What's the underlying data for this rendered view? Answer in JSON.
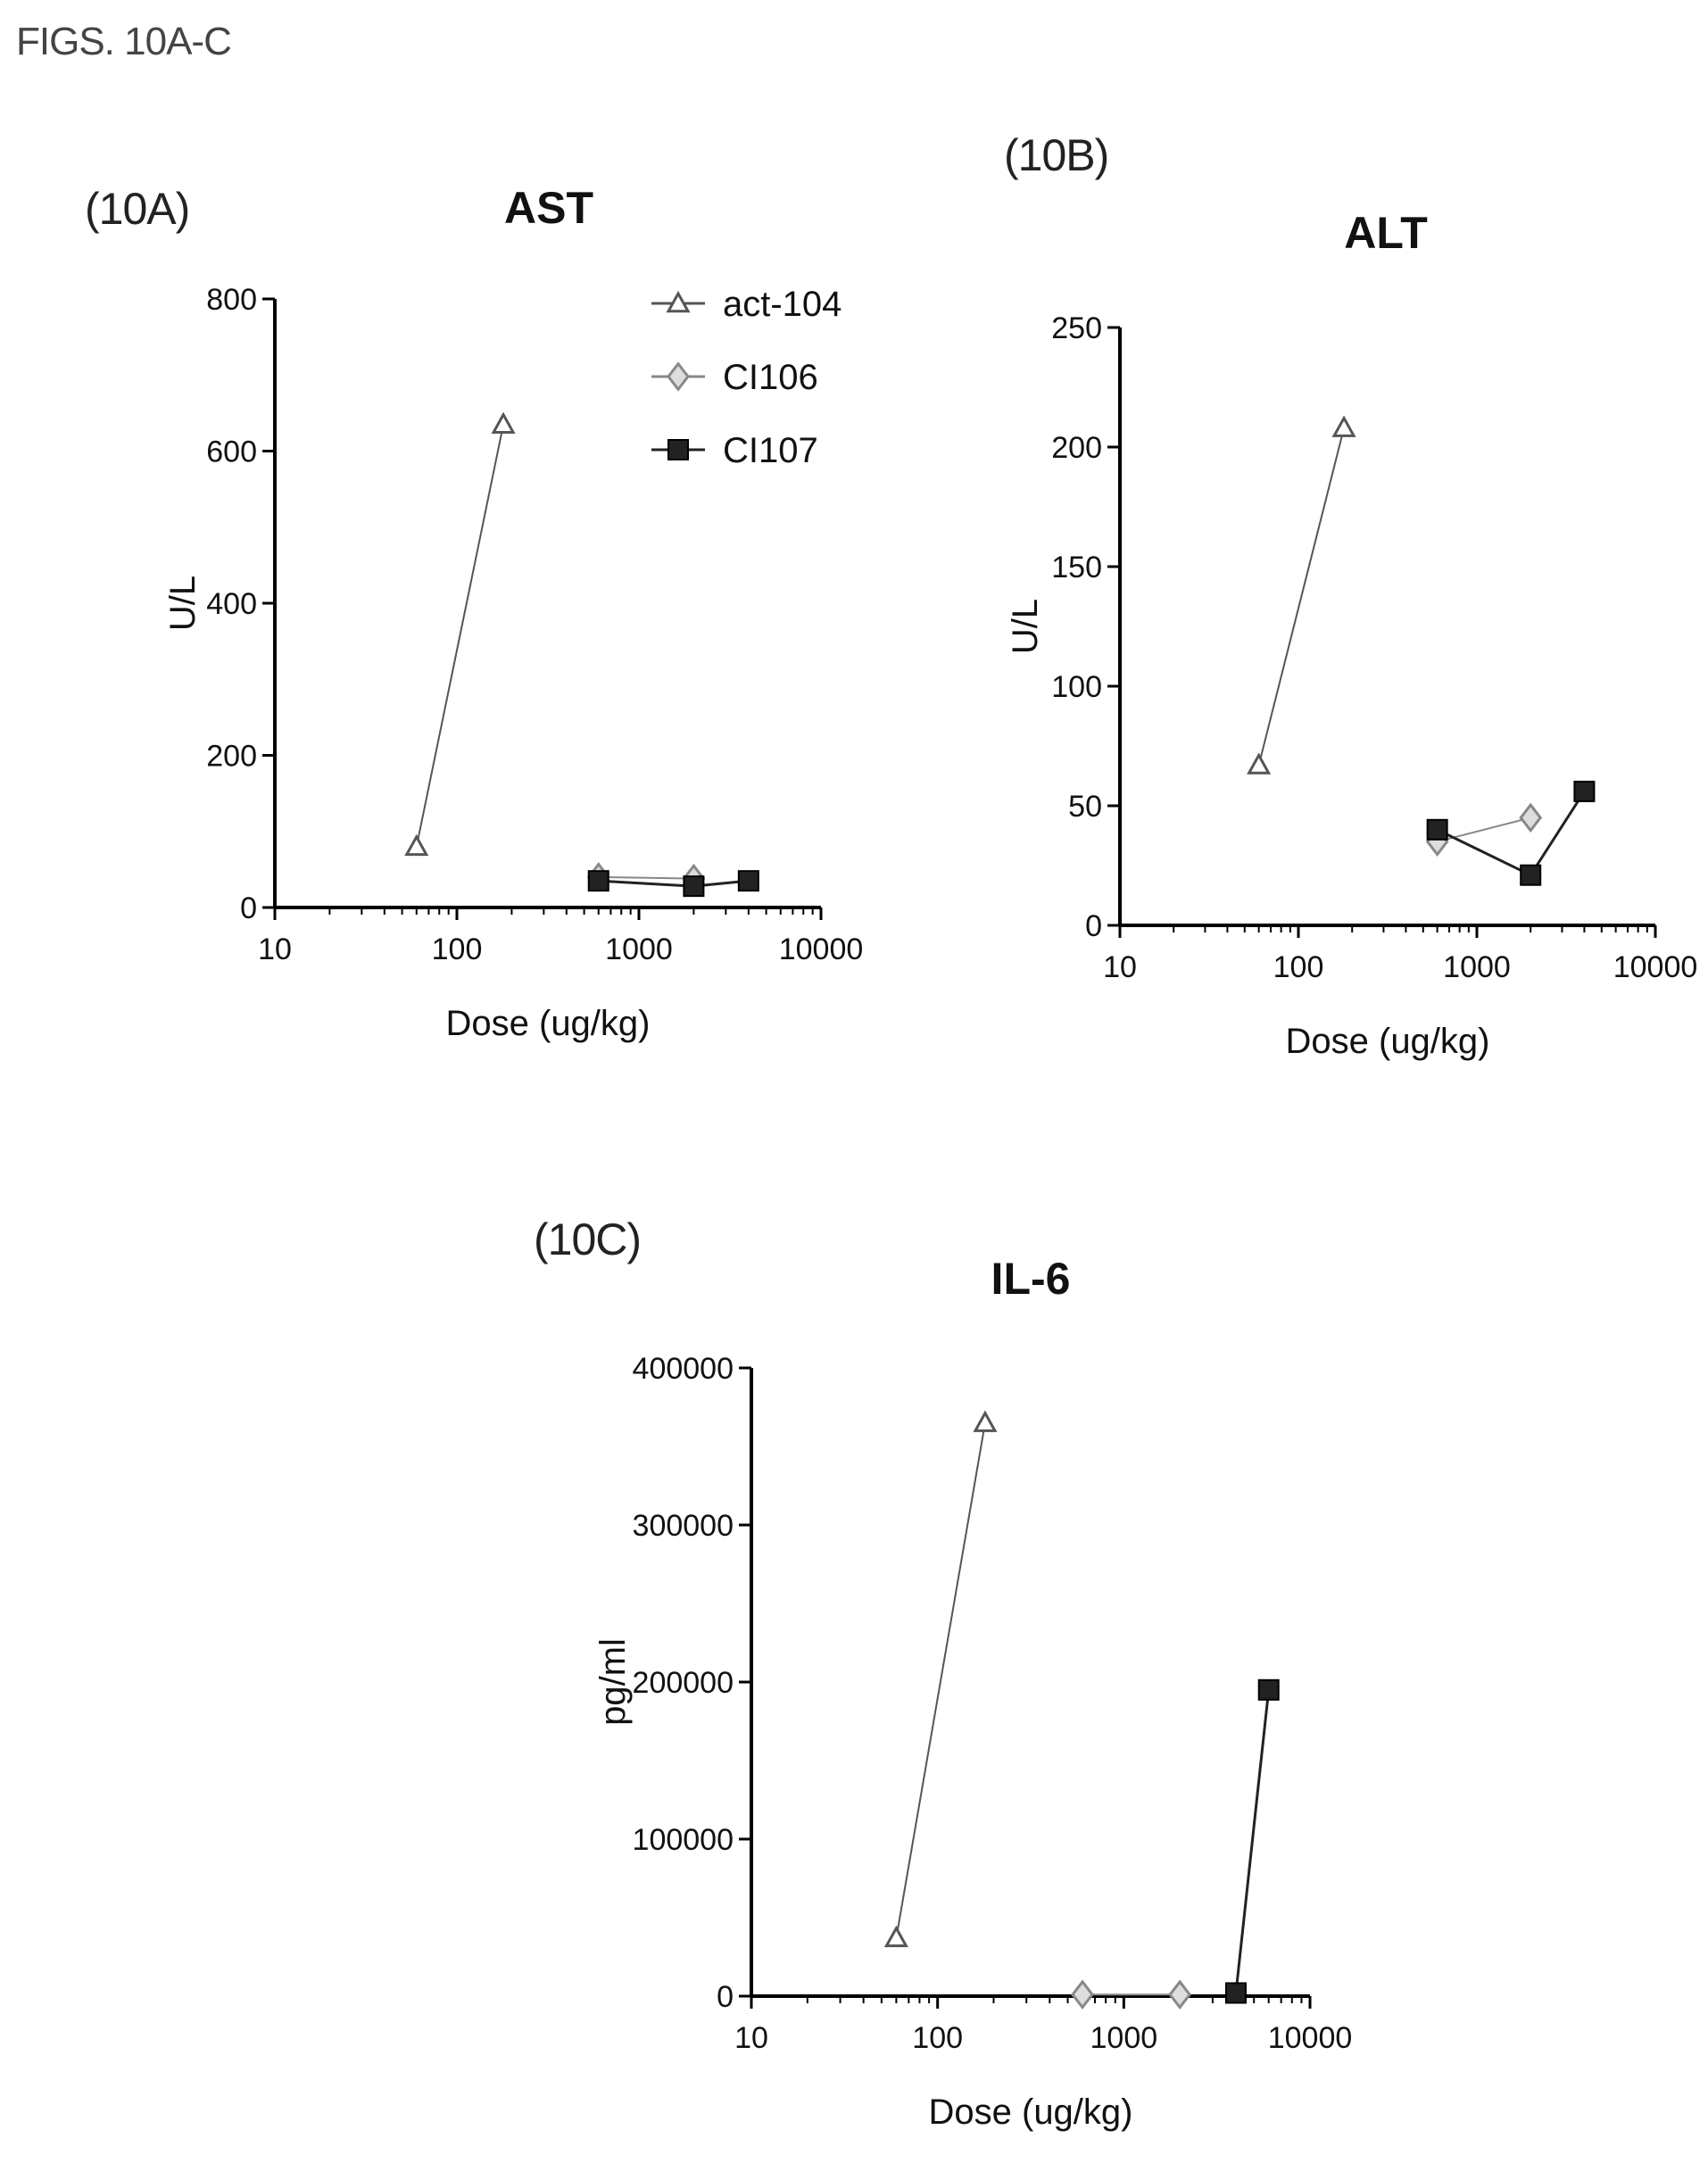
{
  "figure_title": "FIGS. 10A-C",
  "panel_labels": {
    "a": "(10A)",
    "b": "(10B)",
    "c": "(10C)"
  },
  "legend": [
    {
      "name": "act-104",
      "marker": "triangle",
      "color": "#555555"
    },
    {
      "name": "CI106",
      "marker": "diamond",
      "color": "#888888"
    },
    {
      "name": "CI107",
      "marker": "square",
      "color": "#222222"
    }
  ],
  "chart_data": [
    {
      "type": "line",
      "title": "AST",
      "xlabel": "Dose (ug/kg)",
      "ylabel": "U/L",
      "xscale": "log",
      "xlim": [
        10,
        10000
      ],
      "ylim": [
        0,
        800
      ],
      "xticks": [
        "10",
        "100",
        "1000",
        "10000"
      ],
      "yticks": [
        "0",
        "200",
        "400",
        "600",
        "800"
      ],
      "grid": false,
      "legend_position": "top-right",
      "series": [
        {
          "name": "act-104",
          "x": [
            60,
            180
          ],
          "y": [
            80,
            635
          ]
        },
        {
          "name": "CI106",
          "x": [
            600,
            2000
          ],
          "y": [
            40,
            38
          ]
        },
        {
          "name": "CI107",
          "x": [
            600,
            2000,
            4000
          ],
          "y": [
            35,
            28,
            35
          ]
        }
      ]
    },
    {
      "type": "line",
      "title": "ALT",
      "xlabel": "Dose (ug/kg)",
      "ylabel": "U/L",
      "xscale": "log",
      "xlim": [
        10,
        10000
      ],
      "ylim": [
        0,
        250
      ],
      "xticks": [
        "10",
        "100",
        "1000",
        "10000"
      ],
      "yticks": [
        "0",
        "50",
        "100",
        "150",
        "200",
        "250"
      ],
      "grid": false,
      "series": [
        {
          "name": "act-104",
          "x": [
            60,
            180
          ],
          "y": [
            67,
            208
          ]
        },
        {
          "name": "CI106",
          "x": [
            600,
            2000
          ],
          "y": [
            35,
            45
          ]
        },
        {
          "name": "CI107",
          "x": [
            600,
            2000,
            4000
          ],
          "y": [
            40,
            21,
            56
          ]
        }
      ]
    },
    {
      "type": "line",
      "title": "IL-6",
      "xlabel": "Dose (ug/kg)",
      "ylabel": "pg/ml",
      "xscale": "log",
      "xlim": [
        10,
        10000
      ],
      "ylim": [
        0,
        400000
      ],
      "xticks": [
        "10",
        "100",
        "1000",
        "10000"
      ],
      "yticks": [
        "0",
        "100000",
        "200000",
        "300000",
        "400000"
      ],
      "grid": false,
      "series": [
        {
          "name": "act-104",
          "x": [
            60,
            180
          ],
          "y": [
            37000,
            365000
          ]
        },
        {
          "name": "CI106",
          "x": [
            600,
            2000
          ],
          "y": [
            1000,
            1000
          ]
        },
        {
          "name": "CI107",
          "x": [
            4000,
            6000
          ],
          "y": [
            2000,
            195000
          ]
        }
      ]
    }
  ]
}
